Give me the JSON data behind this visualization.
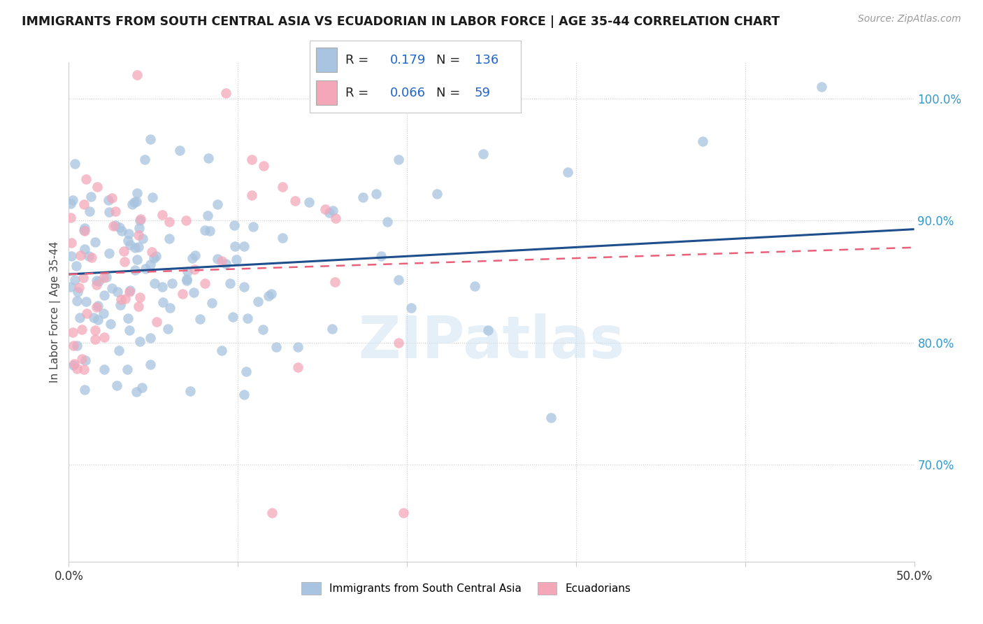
{
  "title": "IMMIGRANTS FROM SOUTH CENTRAL ASIA VS ECUADORIAN IN LABOR FORCE | AGE 35-44 CORRELATION CHART",
  "source": "Source: ZipAtlas.com",
  "ylabel": "In Labor Force | Age 35-44",
  "xlim": [
    0.0,
    0.5
  ],
  "ylim": [
    0.62,
    1.03
  ],
  "xticks": [
    0.0,
    0.1,
    0.2,
    0.3,
    0.4,
    0.5
  ],
  "xticklabels": [
    "0.0%",
    "",
    "",
    "",
    "",
    "50.0%"
  ],
  "ytick_pos": [
    0.7,
    0.8,
    0.9,
    1.0
  ],
  "ytick_labels": [
    "70.0%",
    "80.0%",
    "90.0%",
    "100.0%"
  ],
  "blue_color": "#a8c4e0",
  "pink_color": "#f4a7b9",
  "blue_line_color": "#1f4e8c",
  "pink_line_color": "#e8607a",
  "R_blue": 0.179,
  "N_blue": 136,
  "R_pink": 0.066,
  "N_pink": 59,
  "legend_label_blue": "Immigrants from South Central Asia",
  "legend_label_pink": "Ecuadorians",
  "watermark": "ZIPatlas",
  "blue_trend_x0": 0.0,
  "blue_trend_x1": 0.5,
  "blue_trend_y0": 0.856,
  "blue_trend_y1": 0.893,
  "pink_trend_x0": 0.0,
  "pink_trend_x1": 0.5,
  "pink_trend_y0": 0.856,
  "pink_trend_y1": 0.878
}
